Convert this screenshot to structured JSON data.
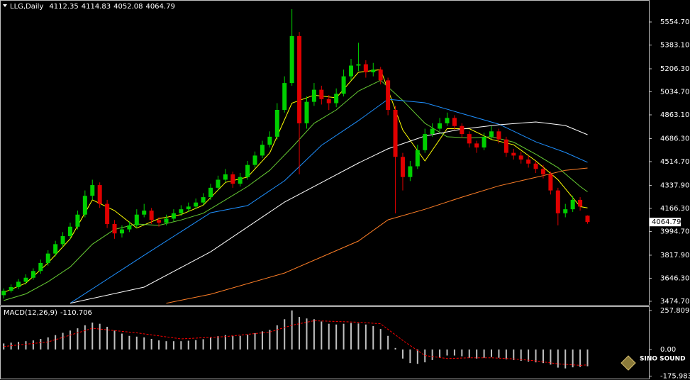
{
  "chart_data": [
    {
      "type": "candlestick",
      "title": "LLG,Daily",
      "up_color": "#00d000",
      "down_color": "#e00000",
      "xlim": [
        -0.5,
        87.3
      ],
      "ylim": [
        3448,
        5692
      ],
      "yticks": [
        {
          "value": 5554.7,
          "label": "5554.70"
        },
        {
          "value": 5383.1,
          "label": "5383.10"
        },
        {
          "value": 5206.3,
          "label": "5206.30"
        },
        {
          "value": 5034.7,
          "label": "5034.70"
        },
        {
          "value": 4863.1,
          "label": "4863.10"
        },
        {
          "value": 4686.3,
          "label": "4686.30"
        },
        {
          "value": 4514.7,
          "label": "4514.70"
        },
        {
          "value": 4337.9,
          "label": "4337.90"
        },
        {
          "value": 4166.3,
          "label": "4166.30"
        },
        {
          "value": 3994.7,
          "label": "3994.70"
        },
        {
          "value": 3817.9,
          "label": "3817.90"
        },
        {
          "value": 3646.3,
          "label": "3646.30"
        },
        {
          "value": 3474.7,
          "label": "3474.70"
        }
      ],
      "open": [
        3520,
        3553,
        3580,
        3620,
        3650,
        3700,
        3760,
        3830,
        3900,
        3960,
        4030,
        4120,
        4260,
        4340,
        4200,
        4050,
        3980,
        4010,
        4040,
        4120,
        4150,
        4080,
        4060,
        4090,
        4130,
        4160,
        4180,
        4210,
        4250,
        4320,
        4380,
        4420,
        4350,
        4400,
        4490,
        4560,
        4640,
        4700,
        4900,
        5100,
        5450,
        4800,
        4960,
        5050,
        4980,
        4950,
        5020,
        5150,
        5230,
        5240,
        5180,
        5200,
        5120,
        4900,
        4550,
        4400,
        4480,
        4600,
        4720,
        4760,
        4800,
        4840,
        4780,
        4720,
        4650,
        4620,
        4700,
        4740,
        4680,
        4580,
        4560,
        4530,
        4500,
        4460,
        4420,
        4300,
        4130,
        4160,
        4230,
        4112.35
      ],
      "high": [
        3570,
        3600,
        3640,
        3675,
        3720,
        3785,
        3855,
        3925,
        3990,
        4060,
        4150,
        4300,
        4380,
        4360,
        4230,
        4080,
        4040,
        4070,
        4160,
        4200,
        4170,
        4100,
        4120,
        4160,
        4190,
        4210,
        4240,
        4280,
        4350,
        4410,
        4460,
        4440,
        4430,
        4520,
        4590,
        4670,
        4740,
        4950,
        5150,
        5650,
        5480,
        5000,
        5100,
        5080,
        5010,
        5060,
        5200,
        5280,
        5400,
        5270,
        5250,
        5220,
        5140,
        4930,
        4580,
        4520,
        4640,
        4760,
        4800,
        4840,
        4880,
        4860,
        4800,
        4740,
        4670,
        4730,
        4780,
        4760,
        4700,
        4610,
        4590,
        4560,
        4520,
        4490,
        4440,
        4320,
        4200,
        4260,
        4250,
        4114.83
      ],
      "low": [
        3495,
        3540,
        3565,
        3600,
        3635,
        3680,
        3740,
        3810,
        3880,
        3940,
        4010,
        4100,
        4230,
        4170,
        4020,
        3940,
        3950,
        3990,
        4020,
        4100,
        4050,
        4030,
        4040,
        4070,
        4110,
        4140,
        4160,
        4190,
        4230,
        4300,
        4360,
        4320,
        4330,
        4380,
        4470,
        4540,
        4620,
        4680,
        4880,
        5080,
        4420,
        4760,
        4930,
        4940,
        4900,
        4920,
        5000,
        5120,
        5190,
        5140,
        5150,
        5090,
        4860,
        4130,
        4300,
        4370,
        4460,
        4580,
        4700,
        4740,
        4780,
        4750,
        4690,
        4620,
        4580,
        4600,
        4680,
        4650,
        4550,
        4530,
        4500,
        4470,
        4430,
        4390,
        4270,
        4040,
        4100,
        4140,
        4150,
        4052.08
      ],
      "close": [
        3553,
        3580,
        3620,
        3650,
        3700,
        3760,
        3830,
        3900,
        3960,
        4030,
        4120,
        4260,
        4340,
        4200,
        4050,
        3980,
        4010,
        4040,
        4120,
        4150,
        4080,
        4060,
        4090,
        4130,
        4160,
        4180,
        4210,
        4250,
        4320,
        4380,
        4420,
        4350,
        4400,
        4490,
        4560,
        4640,
        4700,
        4900,
        5100,
        5450,
        4800,
        4960,
        5050,
        4980,
        4950,
        5020,
        5150,
        5230,
        5240,
        5180,
        5200,
        5120,
        4900,
        4550,
        4400,
        4480,
        4600,
        4720,
        4760,
        4800,
        4840,
        4780,
        4720,
        4650,
        4620,
        4700,
        4740,
        4680,
        4580,
        4560,
        4530,
        4500,
        4460,
        4420,
        4300,
        4130,
        4160,
        4230,
        4180,
        4064.79
      ],
      "lines": [
        {
          "color": "#ffff00",
          "x": [
            0,
            3,
            6,
            9,
            12,
            15,
            18,
            21,
            24,
            27,
            30,
            33,
            36,
            39,
            42,
            45,
            48,
            51,
            54,
            57,
            60,
            63,
            66,
            69,
            72,
            75,
            78,
            79
          ],
          "values": [
            3540,
            3610,
            3760,
            3940,
            4230,
            4150,
            4020,
            4090,
            4120,
            4190,
            4360,
            4400,
            4580,
            4950,
            5010,
            4990,
            5180,
            5200,
            4750,
            4520,
            4760,
            4760,
            4680,
            4640,
            4520,
            4380,
            4180,
            4170
          ]
        },
        {
          "color": "#66cc33",
          "x": [
            0,
            3,
            6,
            9,
            12,
            15,
            18,
            21,
            24,
            27,
            30,
            33,
            36,
            39,
            42,
            45,
            48,
            51,
            54,
            57,
            60,
            63,
            66,
            69,
            72,
            75,
            78,
            79
          ],
          "values": [
            3480,
            3530,
            3620,
            3730,
            3900,
            4010,
            4050,
            4040,
            4080,
            4130,
            4230,
            4330,
            4450,
            4620,
            4800,
            4900,
            5040,
            5120,
            4970,
            4800,
            4700,
            4690,
            4700,
            4660,
            4570,
            4470,
            4330,
            4290
          ]
        },
        {
          "color": "#1e90ff",
          "x": [
            9,
            19,
            28,
            33,
            38,
            43,
            48,
            52,
            57,
            62,
            67,
            72,
            76,
            79
          ],
          "values": [
            3460,
            3817,
            4134,
            4187,
            4372,
            4636,
            4820,
            4979,
            4953,
            4873,
            4794,
            4662,
            4583,
            4510
          ]
        },
        {
          "color": "#ffffff",
          "x": [
            9,
            19,
            28,
            38,
            48,
            52,
            57,
            62,
            67,
            72,
            76,
            79
          ],
          "values": [
            3460,
            3580,
            3843,
            4213,
            4504,
            4610,
            4705,
            4757,
            4789,
            4810,
            4784,
            4715
          ]
        },
        {
          "color": "#ff7f27",
          "x": [
            22,
            28,
            38,
            48,
            52,
            57,
            62,
            67,
            72,
            76,
            79
          ],
          "values": [
            3460,
            3527,
            3685,
            3923,
            4081,
            4160,
            4250,
            4334,
            4398,
            4450,
            4467
          ]
        }
      ]
    },
    {
      "type": "macd",
      "title": "MACD(12,26,9)",
      "color": "#c0c0c0",
      "xlim": [
        -0.5,
        87.3
      ],
      "ylim": [
        -183,
        281
      ],
      "yticks": [
        {
          "value": 257.809,
          "label": "257.809"
        },
        {
          "value": 0,
          "label": "0.00"
        },
        {
          "value": -175.983,
          "label": "-175.983"
        }
      ],
      "values": [
        40,
        45,
        50,
        55,
        60,
        70,
        80,
        95,
        110,
        125,
        140,
        160,
        178,
        170,
        150,
        125,
        105,
        90,
        85,
        80,
        70,
        60,
        55,
        55,
        55,
        58,
        62,
        68,
        78,
        88,
        95,
        90,
        90,
        98,
        108,
        120,
        130,
        160,
        200,
        258,
        215,
        205,
        200,
        185,
        170,
        165,
        170,
        175,
        172,
        165,
        155,
        135,
        90,
        10,
        -60,
        -90,
        -95,
        -85,
        -70,
        -55,
        -40,
        -40,
        -45,
        -55,
        -60,
        -55,
        -50,
        -55,
        -65,
        -70,
        -75,
        -80,
        -85,
        -90,
        -100,
        -120,
        -125,
        -118,
        -115,
        -110.706
      ],
      "signal": {
        "color": "#ff0000",
        "x": [
          0,
          6,
          12,
          18,
          24,
          30,
          36,
          39,
          42,
          48,
          51,
          54,
          57,
          60,
          63,
          66,
          69,
          72,
          75,
          78,
          79
        ],
        "values": [
          20,
          50,
          140,
          110,
          70,
          85,
          115,
          160,
          190,
          180,
          170,
          60,
          -40,
          -60,
          -55,
          -55,
          -62,
          -75,
          -95,
          -105,
          -102.093
        ]
      }
    }
  ],
  "watermark": "SINO SOUND"
}
